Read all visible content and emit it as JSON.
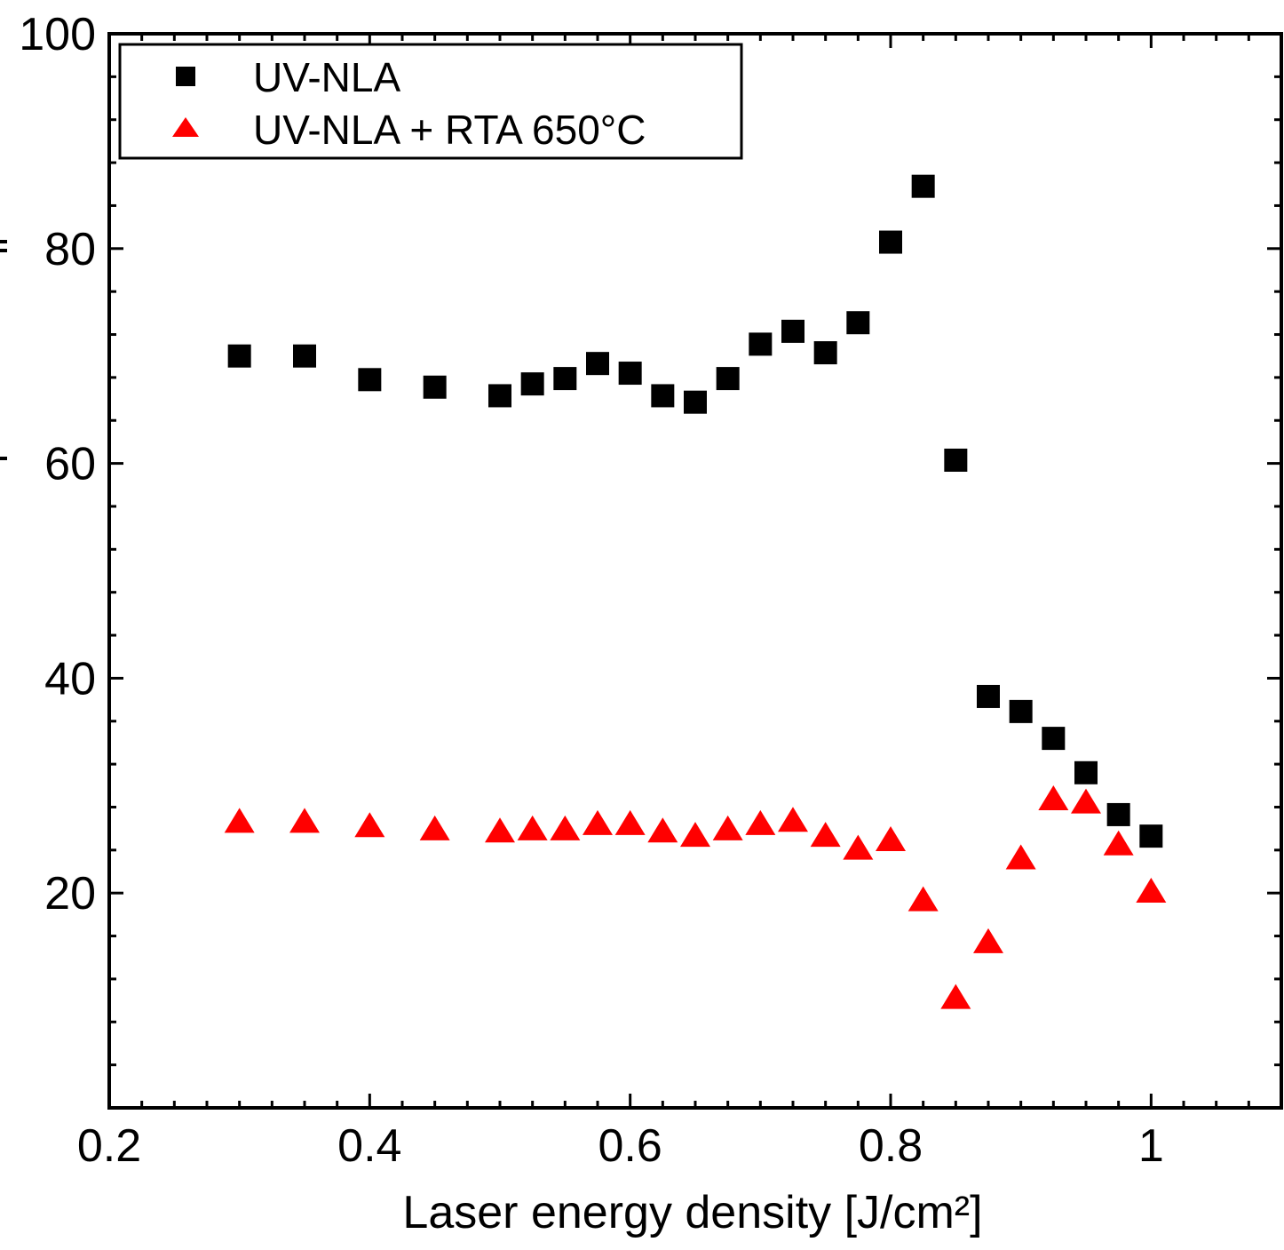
{
  "chart_data": {
    "type": "scatter",
    "title": "",
    "xlabel": "Laser energy density [J/cm²]",
    "ylabel": "",
    "xlim": [
      0.2,
      1.1
    ],
    "ylim": [
      0,
      100
    ],
    "xticks": [
      0.2,
      0.4,
      0.6,
      0.8,
      1.0
    ],
    "xtick_labels": [
      "0.2",
      "0.4",
      "0.6",
      "0.8",
      "1"
    ],
    "yticks": [
      20,
      40,
      60,
      80,
      100
    ],
    "ytick_labels": [
      "20",
      "40",
      "60",
      "80",
      "100"
    ],
    "legend_position": "top-left",
    "grid": false,
    "series": [
      {
        "name": "UV-NLA",
        "marker": "square",
        "color": "#000000",
        "points": [
          [
            0.3,
            70.0
          ],
          [
            0.35,
            70.0
          ],
          [
            0.4,
            67.8
          ],
          [
            0.45,
            67.1
          ],
          [
            0.5,
            66.3
          ],
          [
            0.525,
            67.4
          ],
          [
            0.55,
            67.9
          ],
          [
            0.575,
            69.3
          ],
          [
            0.6,
            68.4
          ],
          [
            0.625,
            66.3
          ],
          [
            0.65,
            65.7
          ],
          [
            0.675,
            67.9
          ],
          [
            0.7,
            71.1
          ],
          [
            0.725,
            72.3
          ],
          [
            0.75,
            70.3
          ],
          [
            0.775,
            73.1
          ],
          [
            0.8,
            80.6
          ],
          [
            0.825,
            85.8
          ],
          [
            0.85,
            60.3
          ],
          [
            0.875,
            38.3
          ],
          [
            0.9,
            36.9
          ],
          [
            0.925,
            34.4
          ],
          [
            0.95,
            31.2
          ],
          [
            0.975,
            27.3
          ],
          [
            1.0,
            25.3
          ]
        ]
      },
      {
        "name": "UV-NLA + RTA 650°C",
        "marker": "triangle",
        "color": "#ff0000",
        "points": [
          [
            0.3,
            26.6
          ],
          [
            0.35,
            26.6
          ],
          [
            0.4,
            26.2
          ],
          [
            0.45,
            25.9
          ],
          [
            0.5,
            25.7
          ],
          [
            0.525,
            25.9
          ],
          [
            0.55,
            25.9
          ],
          [
            0.575,
            26.4
          ],
          [
            0.6,
            26.4
          ],
          [
            0.625,
            25.7
          ],
          [
            0.65,
            25.3
          ],
          [
            0.675,
            25.9
          ],
          [
            0.7,
            26.4
          ],
          [
            0.725,
            26.7
          ],
          [
            0.75,
            25.3
          ],
          [
            0.775,
            24.1
          ],
          [
            0.8,
            24.9
          ],
          [
            0.825,
            19.3
          ],
          [
            0.85,
            10.2
          ],
          [
            0.875,
            15.4
          ],
          [
            0.9,
            23.2
          ],
          [
            0.925,
            28.7
          ],
          [
            0.95,
            28.4
          ],
          [
            0.975,
            24.5
          ],
          [
            1.0,
            20.1
          ]
        ]
      }
    ]
  }
}
